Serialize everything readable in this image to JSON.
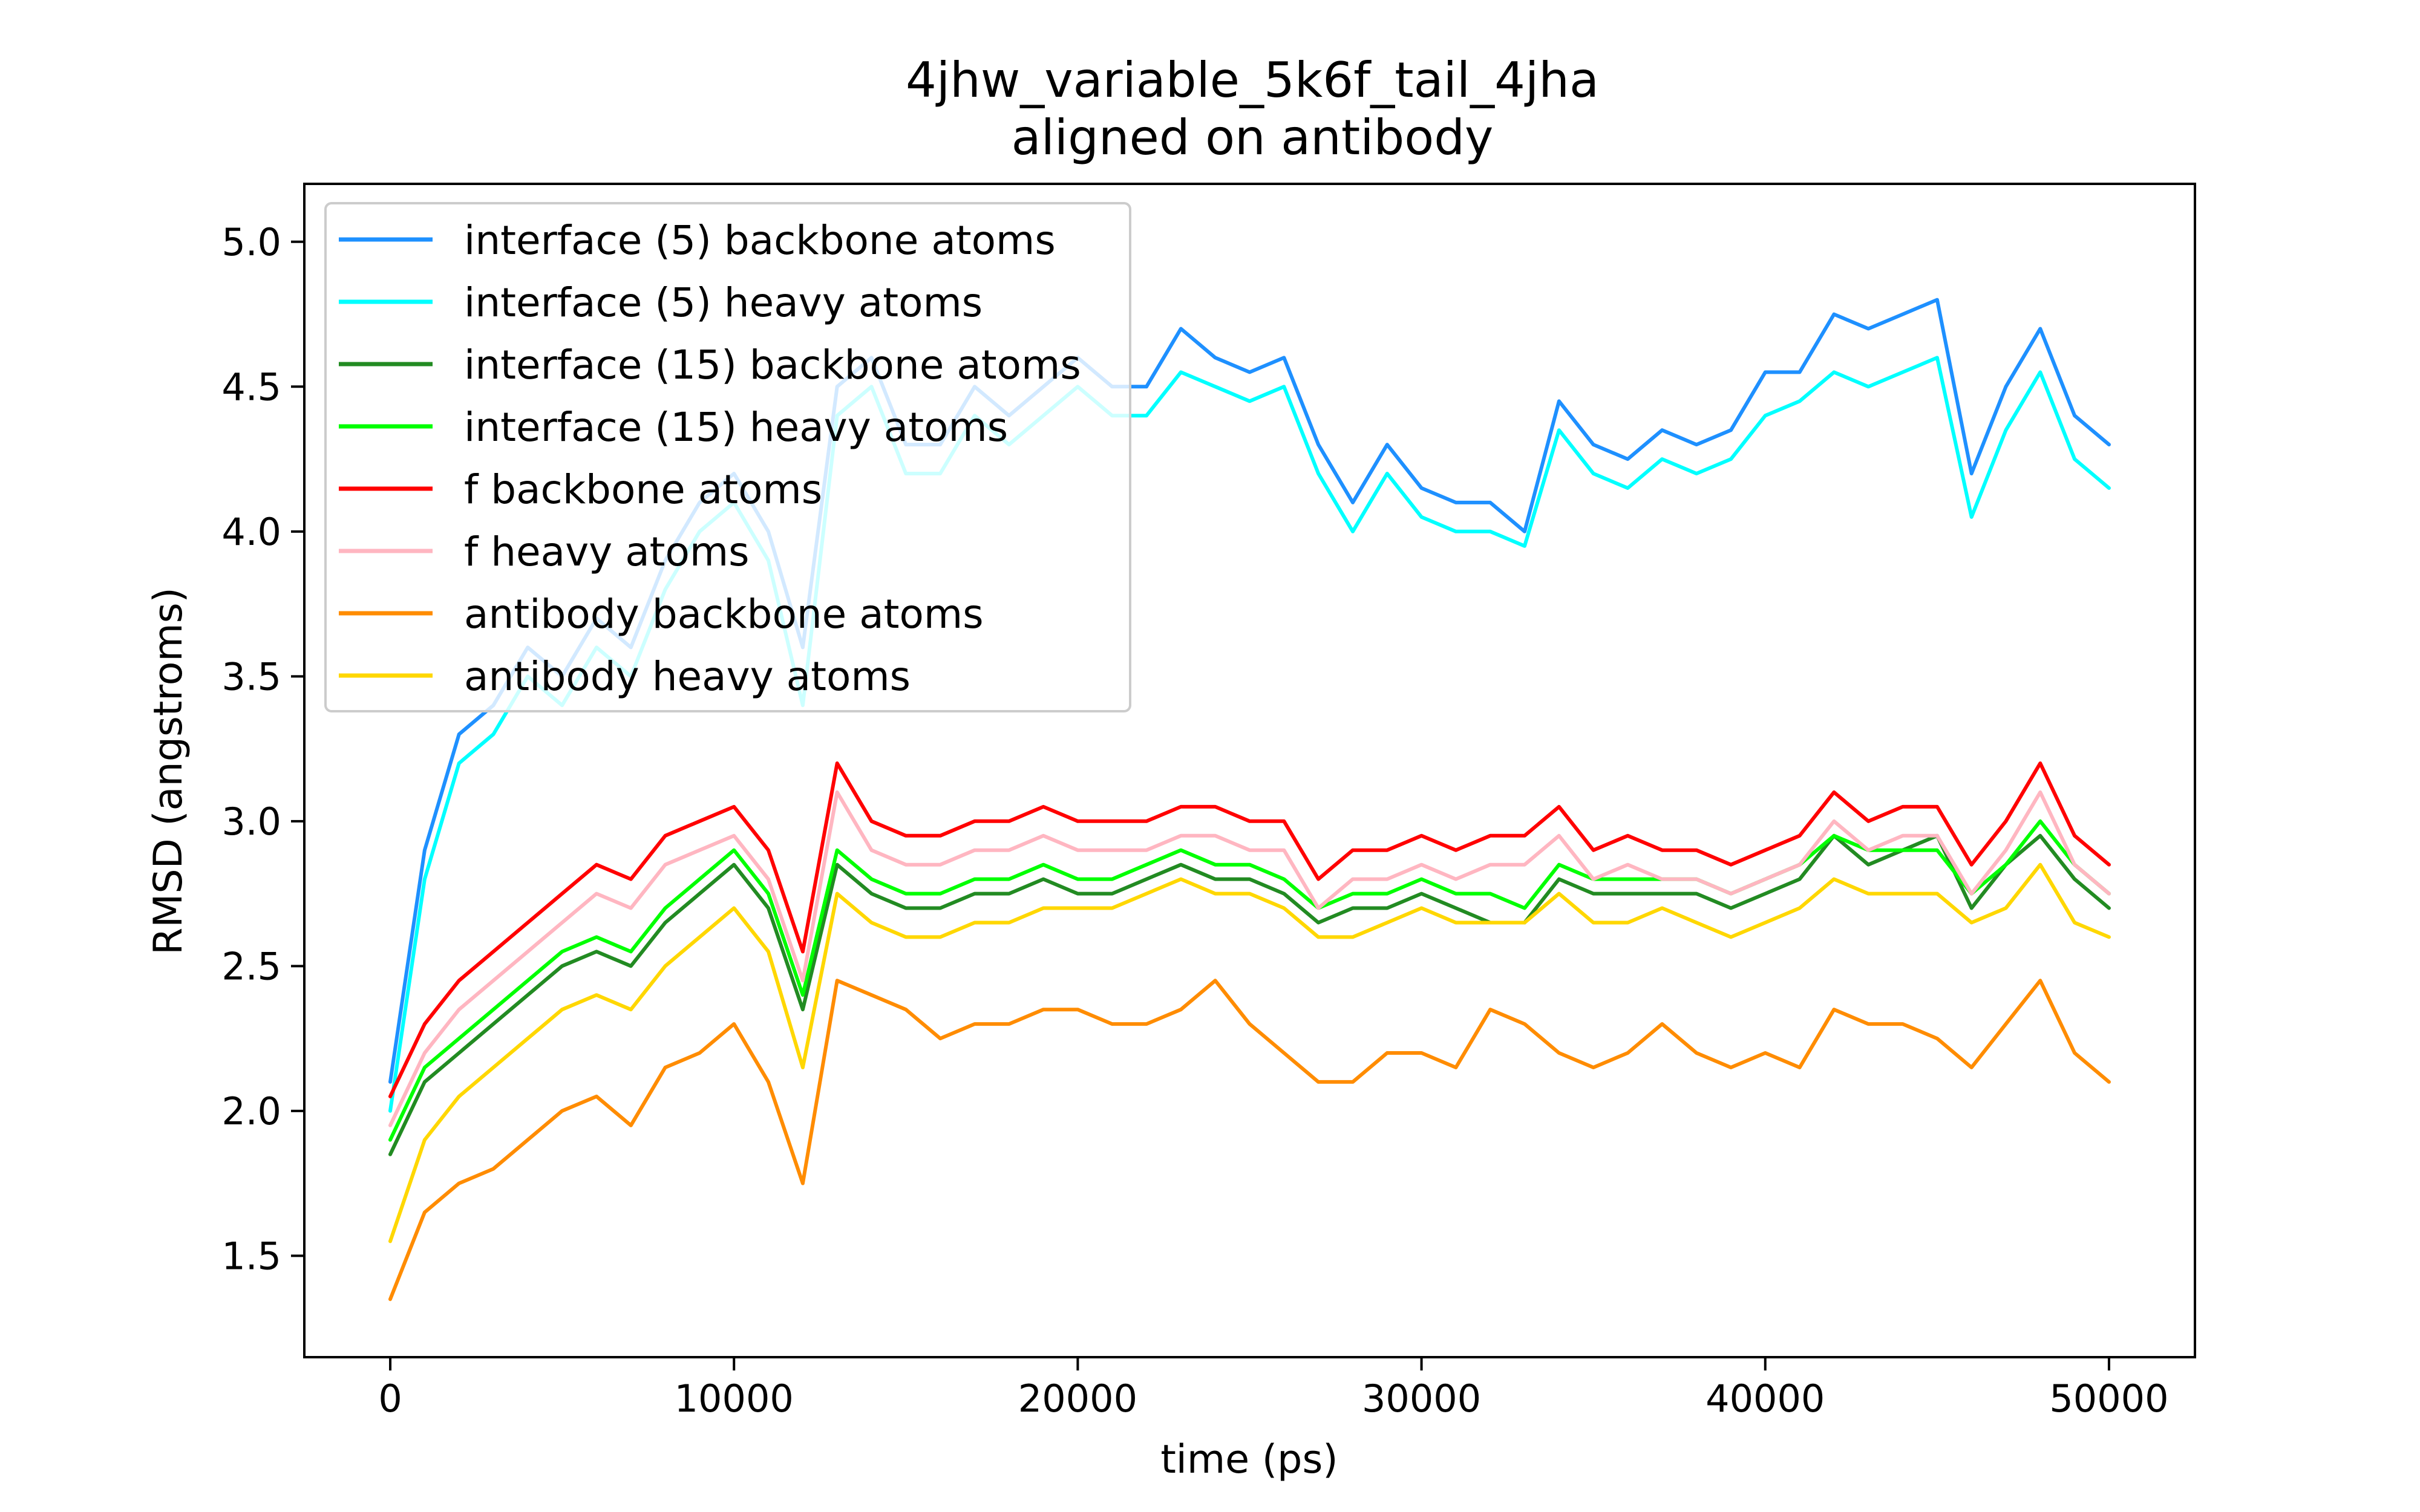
{
  "chart_data": {
    "type": "line",
    "title": "4jhw_variable_5k6f_tail_4jha",
    "subtitle": "aligned on antibody",
    "xlabel": "time (ps)",
    "ylabel": "RMSD (angstroms)",
    "xlim": [
      -2500,
      52500
    ],
    "ylim": [
      1.15,
      5.2
    ],
    "xticks": [
      0,
      10000,
      20000,
      30000,
      40000,
      50000
    ],
    "xtick_labels": [
      "0",
      "10000",
      "20000",
      "30000",
      "40000",
      "50000"
    ],
    "yticks": [
      1.5,
      2.0,
      2.5,
      3.0,
      3.5,
      4.0,
      4.5,
      5.0
    ],
    "ytick_labels": [
      "1.5",
      "2.0",
      "2.5",
      "3.0",
      "3.5",
      "4.0",
      "4.5",
      "5.0"
    ],
    "grid": false,
    "legend_position": "top-left",
    "x": [
      0,
      1000,
      2000,
      3000,
      4000,
      5000,
      6000,
      7000,
      8000,
      9000,
      10000,
      11000,
      12000,
      13000,
      14000,
      15000,
      16000,
      17000,
      18000,
      19000,
      20000,
      21000,
      22000,
      23000,
      24000,
      25000,
      26000,
      27000,
      28000,
      29000,
      30000,
      31000,
      32000,
      33000,
      34000,
      35000,
      36000,
      37000,
      38000,
      39000,
      40000,
      41000,
      42000,
      43000,
      44000,
      45000,
      46000,
      47000,
      48000,
      49000,
      50000
    ],
    "series": [
      {
        "name": "interface (5) backbone atoms",
        "color": "#1e90ff",
        "values": [
          2.1,
          2.9,
          3.3,
          3.4,
          3.6,
          3.5,
          3.7,
          3.6,
          3.9,
          4.1,
          4.2,
          4.0,
          3.6,
          4.5,
          4.6,
          4.3,
          4.3,
          4.5,
          4.4,
          4.5,
          4.6,
          4.5,
          4.5,
          4.7,
          4.6,
          4.55,
          4.6,
          4.3,
          4.1,
          4.3,
          4.15,
          4.1,
          4.1,
          4.0,
          4.45,
          4.3,
          4.25,
          4.35,
          4.3,
          4.35,
          4.55,
          4.55,
          4.75,
          4.7,
          4.75,
          4.8,
          4.2,
          4.5,
          4.7,
          4.4,
          4.3
        ]
      },
      {
        "name": "interface (5) heavy atoms",
        "color": "#00ffff",
        "values": [
          2.0,
          2.8,
          3.2,
          3.3,
          3.5,
          3.4,
          3.6,
          3.5,
          3.8,
          4.0,
          4.1,
          3.9,
          3.4,
          4.4,
          4.5,
          4.2,
          4.2,
          4.4,
          4.3,
          4.4,
          4.5,
          4.4,
          4.4,
          4.55,
          4.5,
          4.45,
          4.5,
          4.2,
          4.0,
          4.2,
          4.05,
          4.0,
          4.0,
          3.95,
          4.35,
          4.2,
          4.15,
          4.25,
          4.2,
          4.25,
          4.4,
          4.45,
          4.55,
          4.5,
          4.55,
          4.6,
          4.05,
          4.35,
          4.55,
          4.25,
          4.15
        ]
      },
      {
        "name": "interface (15) backbone atoms",
        "color": "#228b22",
        "values": [
          1.85,
          2.1,
          2.2,
          2.3,
          2.4,
          2.5,
          2.55,
          2.5,
          2.65,
          2.75,
          2.85,
          2.7,
          2.35,
          2.85,
          2.75,
          2.7,
          2.7,
          2.75,
          2.75,
          2.8,
          2.75,
          2.75,
          2.8,
          2.85,
          2.8,
          2.8,
          2.75,
          2.65,
          2.7,
          2.7,
          2.75,
          2.7,
          2.65,
          2.65,
          2.8,
          2.75,
          2.75,
          2.75,
          2.75,
          2.7,
          2.75,
          2.8,
          2.95,
          2.85,
          2.9,
          2.95,
          2.7,
          2.85,
          2.95,
          2.8,
          2.7
        ]
      },
      {
        "name": "interface (15) heavy atoms",
        "color": "#00ff00",
        "values": [
          1.9,
          2.15,
          2.25,
          2.35,
          2.45,
          2.55,
          2.6,
          2.55,
          2.7,
          2.8,
          2.9,
          2.75,
          2.4,
          2.9,
          2.8,
          2.75,
          2.75,
          2.8,
          2.8,
          2.85,
          2.8,
          2.8,
          2.85,
          2.9,
          2.85,
          2.85,
          2.8,
          2.7,
          2.75,
          2.75,
          2.8,
          2.75,
          2.75,
          2.7,
          2.85,
          2.8,
          2.8,
          2.8,
          2.8,
          2.75,
          2.8,
          2.85,
          2.95,
          2.9,
          2.9,
          2.9,
          2.75,
          2.85,
          3.0,
          2.85,
          2.75
        ]
      },
      {
        "name": "f backbone atoms",
        "color": "#ff0000",
        "values": [
          2.05,
          2.3,
          2.45,
          2.55,
          2.65,
          2.75,
          2.85,
          2.8,
          2.95,
          3.0,
          3.05,
          2.9,
          2.55,
          3.2,
          3.0,
          2.95,
          2.95,
          3.0,
          3.0,
          3.05,
          3.0,
          3.0,
          3.0,
          3.05,
          3.05,
          3.0,
          3.0,
          2.8,
          2.9,
          2.9,
          2.95,
          2.9,
          2.95,
          2.95,
          3.05,
          2.9,
          2.95,
          2.9,
          2.9,
          2.85,
          2.9,
          2.95,
          3.1,
          3.0,
          3.05,
          3.05,
          2.85,
          3.0,
          3.2,
          2.95,
          2.85
        ]
      },
      {
        "name": "f heavy atoms",
        "color": "#ffb6c1",
        "values": [
          1.95,
          2.2,
          2.35,
          2.45,
          2.55,
          2.65,
          2.75,
          2.7,
          2.85,
          2.9,
          2.95,
          2.8,
          2.45,
          3.1,
          2.9,
          2.85,
          2.85,
          2.9,
          2.9,
          2.95,
          2.9,
          2.9,
          2.9,
          2.95,
          2.95,
          2.9,
          2.9,
          2.7,
          2.8,
          2.8,
          2.85,
          2.8,
          2.85,
          2.85,
          2.95,
          2.8,
          2.85,
          2.8,
          2.8,
          2.75,
          2.8,
          2.85,
          3.0,
          2.9,
          2.95,
          2.95,
          2.75,
          2.9,
          3.1,
          2.85,
          2.75
        ]
      },
      {
        "name": "antibody backbone atoms",
        "color": "#ff8c00",
        "values": [
          1.35,
          1.65,
          1.75,
          1.8,
          1.9,
          2.0,
          2.05,
          1.95,
          2.15,
          2.2,
          2.3,
          2.1,
          1.75,
          2.45,
          2.4,
          2.35,
          2.25,
          2.3,
          2.3,
          2.35,
          2.35,
          2.3,
          2.3,
          2.35,
          2.45,
          2.3,
          2.2,
          2.1,
          2.1,
          2.2,
          2.2,
          2.15,
          2.35,
          2.3,
          2.2,
          2.15,
          2.2,
          2.3,
          2.2,
          2.15,
          2.2,
          2.15,
          2.35,
          2.3,
          2.3,
          2.25,
          2.15,
          2.3,
          2.45,
          2.2,
          2.1
        ]
      },
      {
        "name": "antibody heavy atoms",
        "color": "#ffd700",
        "values": [
          1.55,
          1.9,
          2.05,
          2.15,
          2.25,
          2.35,
          2.4,
          2.35,
          2.5,
          2.6,
          2.7,
          2.55,
          2.15,
          2.75,
          2.65,
          2.6,
          2.6,
          2.65,
          2.65,
          2.7,
          2.7,
          2.7,
          2.75,
          2.8,
          2.75,
          2.75,
          2.7,
          2.6,
          2.6,
          2.65,
          2.7,
          2.65,
          2.65,
          2.65,
          2.75,
          2.65,
          2.65,
          2.7,
          2.65,
          2.6,
          2.65,
          2.7,
          2.8,
          2.75,
          2.75,
          2.75,
          2.65,
          2.7,
          2.85,
          2.65,
          2.6
        ]
      }
    ]
  }
}
